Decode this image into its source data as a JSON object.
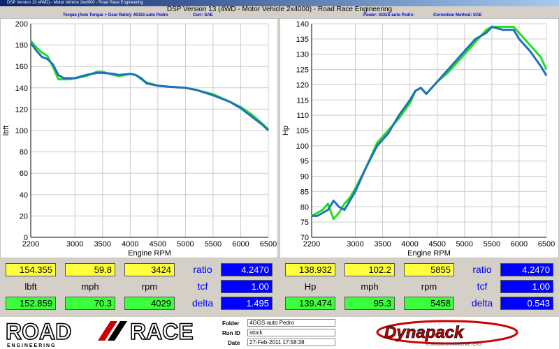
{
  "window": {
    "titlebar": "DSP Version 13 (4WD) - Motor Vehicle 2wd000 - Road Race Engineering",
    "title": "DSP Version 13 (4WD - Motor Vehicle 2x4000) - Road Race Engineering"
  },
  "left_header": {
    "text1": "Torque (Axle Torque + Gear Ratio): 4GGS-auto Pedro",
    "text2": "Corr: SAE"
  },
  "right_header": {
    "text1": "Power: 4GGS-auto Pedro",
    "text2": "Correction Method: SAE"
  },
  "chart_data": [
    {
      "type": "line",
      "title": "",
      "xlabel": "Engine RPM",
      "ylabel": "lbft",
      "xlim": [
        2200,
        6500
      ],
      "ylim": [
        0,
        200
      ],
      "x_ticks": [
        2200,
        3000,
        3500,
        4000,
        4500,
        5000,
        5500,
        6000,
        6500
      ],
      "y_ticks": [
        0,
        20,
        40,
        60,
        80,
        100,
        120,
        140,
        160,
        180,
        200
      ],
      "grid": true,
      "series": [
        {
          "color": "#22dd22",
          "x": [
            2200,
            2300,
            2400,
            2500,
            2600,
            2700,
            2800,
            2900,
            3000,
            3200,
            3400,
            3500,
            3700,
            3800,
            4000,
            4100,
            4200,
            4300,
            4500,
            4700,
            5000,
            5200,
            5500,
            5800,
            6000,
            6200,
            6400,
            6500
          ],
          "y": [
            184,
            178,
            173,
            170,
            160,
            148,
            148,
            148,
            149,
            151,
            155,
            155,
            152,
            151,
            153,
            152,
            148,
            145,
            142,
            141,
            140,
            138,
            134,
            127,
            122,
            115,
            106,
            101
          ]
        },
        {
          "color": "#1f6fbf",
          "x": [
            2200,
            2300,
            2400,
            2500,
            2600,
            2700,
            2800,
            2900,
            3000,
            3200,
            3400,
            3500,
            3700,
            3800,
            4000,
            4100,
            4200,
            4300,
            4500,
            4700,
            5000,
            5200,
            5500,
            5800,
            6000,
            6200,
            6400,
            6500
          ],
          "y": [
            182,
            175,
            169,
            167,
            162,
            152,
            149,
            149,
            149,
            152,
            154,
            154,
            153,
            152,
            153,
            152,
            149,
            144,
            142,
            141,
            140,
            138,
            133,
            127,
            121,
            113,
            105,
            100
          ]
        }
      ]
    },
    {
      "type": "line",
      "title": "",
      "xlabel": "Engine RPM",
      "ylabel": "Hp",
      "xlim": [
        2200,
        6500
      ],
      "ylim": [
        70,
        140
      ],
      "x_ticks": [
        2200,
        3000,
        3500,
        4000,
        4500,
        5000,
        5500,
        6000,
        6500
      ],
      "y_ticks": [
        70,
        75,
        80,
        85,
        90,
        95,
        100,
        105,
        110,
        115,
        120,
        125,
        130,
        135,
        140
      ],
      "grid": true,
      "series": [
        {
          "color": "#22dd22",
          "x": [
            2200,
            2300,
            2400,
            2500,
            2600,
            2700,
            2800,
            2900,
            3000,
            3200,
            3400,
            3600,
            3800,
            4000,
            4100,
            4200,
            4300,
            4500,
            4700,
            5000,
            5200,
            5400,
            5500,
            5700,
            5900,
            6000,
            6200,
            6400,
            6500
          ],
          "y": [
            77,
            78,
            79,
            81,
            76,
            78,
            81,
            83,
            86,
            93,
            101,
            105,
            109,
            114,
            118,
            119,
            117,
            121,
            124,
            130,
            134,
            138,
            139,
            139,
            139,
            137,
            133,
            129,
            125
          ]
        },
        {
          "color": "#1f6fbf",
          "x": [
            2200,
            2300,
            2400,
            2500,
            2600,
            2700,
            2800,
            2900,
            3000,
            3200,
            3400,
            3600,
            3800,
            4000,
            4100,
            4200,
            4300,
            4500,
            4700,
            5000,
            5200,
            5400,
            5500,
            5700,
            5900,
            6000,
            6200,
            6400,
            6500
          ],
          "y": [
            77,
            77,
            78,
            79,
            82,
            80,
            79,
            82,
            85,
            93,
            100,
            104,
            110,
            115,
            118,
            119,
            117,
            121,
            125,
            131,
            135,
            137,
            139,
            138,
            138,
            135,
            131,
            126,
            123
          ]
        }
      ]
    }
  ],
  "left_panel": {
    "row1": {
      "lbft": "154.355",
      "mph": "59.8",
      "rpm": "3424",
      "ratio_label": "ratio",
      "ratio": "4.2470"
    },
    "row2": {
      "unit1": "lbft",
      "unit2": "mph",
      "unit3": "rpm",
      "tcf_label": "tcf",
      "tcf": "1.00"
    },
    "row3": {
      "lbft": "152.859",
      "mph": "70.3",
      "rpm": "4029",
      "delta_label": "delta",
      "delta": "1.495"
    }
  },
  "right_panel": {
    "row1": {
      "hp": "138.932",
      "mph": "102.2",
      "rpm": "5855",
      "ratio_label": "ratio",
      "ratio": "4.2470"
    },
    "row2": {
      "unit1": "Hp",
      "unit2": "mph",
      "unit3": "rpm",
      "tcf_label": "tcf",
      "tcf": "1.00"
    },
    "row3": {
      "hp": "139.474",
      "mph": "95.3",
      "rpm": "5458",
      "delta_label": "delta",
      "delta": "0.543"
    }
  },
  "footer": {
    "logo_road": "ROAD",
    "logo_race": "RACE",
    "logo_sub": "E N G I N E E R I N G",
    "folder_label": "Folder",
    "folder": "4GGS-auto Pedro",
    "runid_label": "Run ID",
    "runid": "stock",
    "date_label": "Date",
    "date": "27-Feb-2011 17:58:38",
    "dyno_logo": "Dynapack",
    "dyno_sub": "CHASSIS DYNAMOMETERS"
  },
  "colors": {
    "green_series": "#22dd22",
    "blue_series": "#1f6fbf",
    "yellow_cell": "#ffff3c",
    "green_cell": "#3cff3c",
    "blue_cell": "#0000ff"
  }
}
